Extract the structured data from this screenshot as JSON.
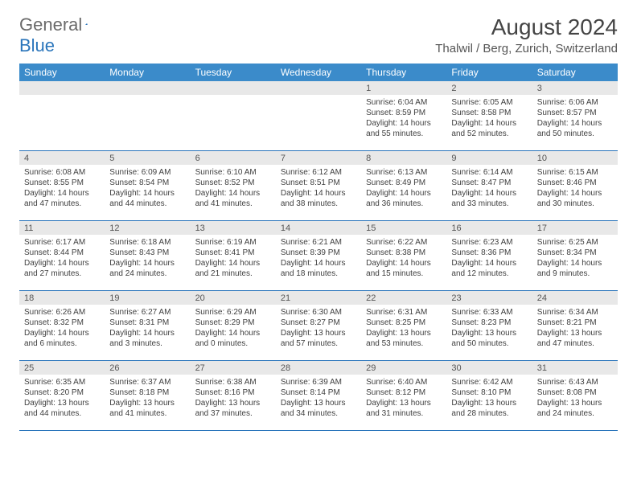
{
  "logo": {
    "word1": "General",
    "word2": "Blue"
  },
  "title": "August 2024",
  "location": "Thalwil / Berg, Zurich, Switzerland",
  "colors": {
    "header_bg": "#3b8bca",
    "header_text": "#ffffff",
    "daynum_bg": "#e8e8e8",
    "border": "#2a75bb",
    "logo_gray": "#6a6a6a",
    "logo_blue": "#2a75bb"
  },
  "weekdays": [
    "Sunday",
    "Monday",
    "Tuesday",
    "Wednesday",
    "Thursday",
    "Friday",
    "Saturday"
  ],
  "weeks": [
    [
      {
        "num": "",
        "sunrise": "",
        "sunset": "",
        "day1": "",
        "day2": ""
      },
      {
        "num": "",
        "sunrise": "",
        "sunset": "",
        "day1": "",
        "day2": ""
      },
      {
        "num": "",
        "sunrise": "",
        "sunset": "",
        "day1": "",
        "day2": ""
      },
      {
        "num": "",
        "sunrise": "",
        "sunset": "",
        "day1": "",
        "day2": ""
      },
      {
        "num": "1",
        "sunrise": "Sunrise: 6:04 AM",
        "sunset": "Sunset: 8:59 PM",
        "day1": "Daylight: 14 hours",
        "day2": "and 55 minutes."
      },
      {
        "num": "2",
        "sunrise": "Sunrise: 6:05 AM",
        "sunset": "Sunset: 8:58 PM",
        "day1": "Daylight: 14 hours",
        "day2": "and 52 minutes."
      },
      {
        "num": "3",
        "sunrise": "Sunrise: 6:06 AM",
        "sunset": "Sunset: 8:57 PM",
        "day1": "Daylight: 14 hours",
        "day2": "and 50 minutes."
      }
    ],
    [
      {
        "num": "4",
        "sunrise": "Sunrise: 6:08 AM",
        "sunset": "Sunset: 8:55 PM",
        "day1": "Daylight: 14 hours",
        "day2": "and 47 minutes."
      },
      {
        "num": "5",
        "sunrise": "Sunrise: 6:09 AM",
        "sunset": "Sunset: 8:54 PM",
        "day1": "Daylight: 14 hours",
        "day2": "and 44 minutes."
      },
      {
        "num": "6",
        "sunrise": "Sunrise: 6:10 AM",
        "sunset": "Sunset: 8:52 PM",
        "day1": "Daylight: 14 hours",
        "day2": "and 41 minutes."
      },
      {
        "num": "7",
        "sunrise": "Sunrise: 6:12 AM",
        "sunset": "Sunset: 8:51 PM",
        "day1": "Daylight: 14 hours",
        "day2": "and 38 minutes."
      },
      {
        "num": "8",
        "sunrise": "Sunrise: 6:13 AM",
        "sunset": "Sunset: 8:49 PM",
        "day1": "Daylight: 14 hours",
        "day2": "and 36 minutes."
      },
      {
        "num": "9",
        "sunrise": "Sunrise: 6:14 AM",
        "sunset": "Sunset: 8:47 PM",
        "day1": "Daylight: 14 hours",
        "day2": "and 33 minutes."
      },
      {
        "num": "10",
        "sunrise": "Sunrise: 6:15 AM",
        "sunset": "Sunset: 8:46 PM",
        "day1": "Daylight: 14 hours",
        "day2": "and 30 minutes."
      }
    ],
    [
      {
        "num": "11",
        "sunrise": "Sunrise: 6:17 AM",
        "sunset": "Sunset: 8:44 PM",
        "day1": "Daylight: 14 hours",
        "day2": "and 27 minutes."
      },
      {
        "num": "12",
        "sunrise": "Sunrise: 6:18 AM",
        "sunset": "Sunset: 8:43 PM",
        "day1": "Daylight: 14 hours",
        "day2": "and 24 minutes."
      },
      {
        "num": "13",
        "sunrise": "Sunrise: 6:19 AM",
        "sunset": "Sunset: 8:41 PM",
        "day1": "Daylight: 14 hours",
        "day2": "and 21 minutes."
      },
      {
        "num": "14",
        "sunrise": "Sunrise: 6:21 AM",
        "sunset": "Sunset: 8:39 PM",
        "day1": "Daylight: 14 hours",
        "day2": "and 18 minutes."
      },
      {
        "num": "15",
        "sunrise": "Sunrise: 6:22 AM",
        "sunset": "Sunset: 8:38 PM",
        "day1": "Daylight: 14 hours",
        "day2": "and 15 minutes."
      },
      {
        "num": "16",
        "sunrise": "Sunrise: 6:23 AM",
        "sunset": "Sunset: 8:36 PM",
        "day1": "Daylight: 14 hours",
        "day2": "and 12 minutes."
      },
      {
        "num": "17",
        "sunrise": "Sunrise: 6:25 AM",
        "sunset": "Sunset: 8:34 PM",
        "day1": "Daylight: 14 hours",
        "day2": "and 9 minutes."
      }
    ],
    [
      {
        "num": "18",
        "sunrise": "Sunrise: 6:26 AM",
        "sunset": "Sunset: 8:32 PM",
        "day1": "Daylight: 14 hours",
        "day2": "and 6 minutes."
      },
      {
        "num": "19",
        "sunrise": "Sunrise: 6:27 AM",
        "sunset": "Sunset: 8:31 PM",
        "day1": "Daylight: 14 hours",
        "day2": "and 3 minutes."
      },
      {
        "num": "20",
        "sunrise": "Sunrise: 6:29 AM",
        "sunset": "Sunset: 8:29 PM",
        "day1": "Daylight: 14 hours",
        "day2": "and 0 minutes."
      },
      {
        "num": "21",
        "sunrise": "Sunrise: 6:30 AM",
        "sunset": "Sunset: 8:27 PM",
        "day1": "Daylight: 13 hours",
        "day2": "and 57 minutes."
      },
      {
        "num": "22",
        "sunrise": "Sunrise: 6:31 AM",
        "sunset": "Sunset: 8:25 PM",
        "day1": "Daylight: 13 hours",
        "day2": "and 53 minutes."
      },
      {
        "num": "23",
        "sunrise": "Sunrise: 6:33 AM",
        "sunset": "Sunset: 8:23 PM",
        "day1": "Daylight: 13 hours",
        "day2": "and 50 minutes."
      },
      {
        "num": "24",
        "sunrise": "Sunrise: 6:34 AM",
        "sunset": "Sunset: 8:21 PM",
        "day1": "Daylight: 13 hours",
        "day2": "and 47 minutes."
      }
    ],
    [
      {
        "num": "25",
        "sunrise": "Sunrise: 6:35 AM",
        "sunset": "Sunset: 8:20 PM",
        "day1": "Daylight: 13 hours",
        "day2": "and 44 minutes."
      },
      {
        "num": "26",
        "sunrise": "Sunrise: 6:37 AM",
        "sunset": "Sunset: 8:18 PM",
        "day1": "Daylight: 13 hours",
        "day2": "and 41 minutes."
      },
      {
        "num": "27",
        "sunrise": "Sunrise: 6:38 AM",
        "sunset": "Sunset: 8:16 PM",
        "day1": "Daylight: 13 hours",
        "day2": "and 37 minutes."
      },
      {
        "num": "28",
        "sunrise": "Sunrise: 6:39 AM",
        "sunset": "Sunset: 8:14 PM",
        "day1": "Daylight: 13 hours",
        "day2": "and 34 minutes."
      },
      {
        "num": "29",
        "sunrise": "Sunrise: 6:40 AM",
        "sunset": "Sunset: 8:12 PM",
        "day1": "Daylight: 13 hours",
        "day2": "and 31 minutes."
      },
      {
        "num": "30",
        "sunrise": "Sunrise: 6:42 AM",
        "sunset": "Sunset: 8:10 PM",
        "day1": "Daylight: 13 hours",
        "day2": "and 28 minutes."
      },
      {
        "num": "31",
        "sunrise": "Sunrise: 6:43 AM",
        "sunset": "Sunset: 8:08 PM",
        "day1": "Daylight: 13 hours",
        "day2": "and 24 minutes."
      }
    ]
  ]
}
